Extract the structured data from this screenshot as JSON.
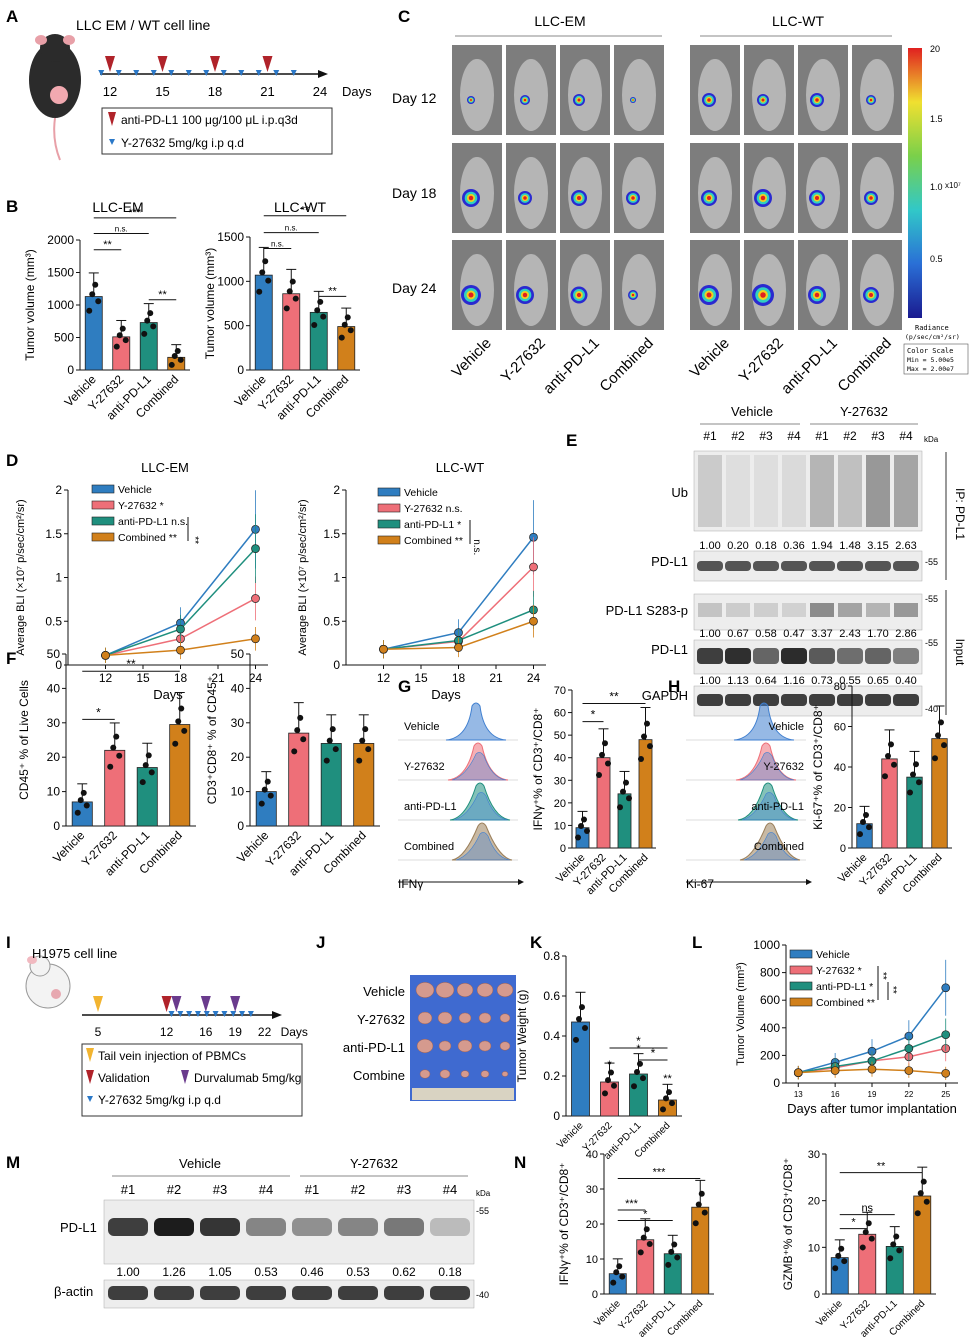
{
  "panel_letters": [
    "A",
    "B",
    "C",
    "D",
    "E",
    "F",
    "G",
    "H",
    "I",
    "J",
    "K",
    "L",
    "M",
    "N"
  ],
  "colors": {
    "vehicle": "#2f7dc0",
    "y27632": "#ee6f78",
    "antipdl1": "#1f8f7e",
    "combined": "#d1801b",
    "triangle_red": "#b0232a",
    "triangle_blue": "#2a78c8",
    "triangle_purple": "#6a3b8d",
    "triangle_yellow": "#f2b430"
  },
  "groups": [
    "Vehicle",
    "Y-27632",
    "anti-PD-L1",
    "Combined"
  ],
  "A": {
    "title": "LLC EM / WT cell line",
    "days": [
      "12",
      "15",
      "18",
      "21",
      "24"
    ],
    "axis_unit": "Days",
    "legend": [
      "anti-PD-L1 100 μg/100 μL i.p.q3d",
      "Y-27632 5mg/kg i.p q.d"
    ]
  },
  "B": {
    "titles": [
      "LLC-EM",
      "LLC-WT"
    ],
    "ylabel": "Tumor volume (mm³)",
    "sig_left": [
      "***",
      "n.s.",
      "**",
      "**"
    ],
    "sig_right": [
      "**",
      "n.s.",
      "n.s.",
      "**"
    ]
  },
  "C": {
    "groups_top": [
      "LLC-EM",
      "LLC-WT"
    ],
    "rows": [
      "Day 12",
      "Day 18",
      "Day 24"
    ],
    "colorbar_max": "20",
    "colorbar_ticks": [
      "1.5",
      "1.0",
      "0.5"
    ],
    "colorbar_exp": "x10⁷",
    "radiance_title": "Radiance",
    "radiance_unit": "(p/sec/cm²/sr)",
    "color_scale": [
      "Color Scale",
      "Min = 5.00e5",
      "Max = 2.00e7"
    ]
  },
  "D": {
    "titles": [
      "LLC-EM",
      "LLC-WT"
    ],
    "ylabel": "Average BLI (×10⁷ p/sec/cm²/sr)",
    "xlabel": "Days",
    "legend_left": [
      "Vehicle",
      "Y-27632 *",
      "anti-PD-L1 n.s.",
      "Combined **"
    ],
    "legend_right": [
      "Vehicle",
      "Y-27632 n.s.",
      "anti-PD-L1 *",
      "Combined **"
    ],
    "bracket_left": "**",
    "bracket_right": "n.s."
  },
  "E": {
    "groups": [
      "Vehicle",
      "Y-27632"
    ],
    "lanes": [
      "#1",
      "#2",
      "#3",
      "#4",
      "#1",
      "#2",
      "#3",
      "#4"
    ],
    "kda": "kDa",
    "rows": [
      "Ub",
      "PD-L1",
      "PD-L1 S283-p",
      "PD-L1",
      "GAPDH"
    ],
    "ub_quant": [
      "1.00",
      "0.20",
      "0.18",
      "0.36",
      "1.94",
      "1.48",
      "3.15",
      "2.63"
    ],
    "s283_quant": [
      "1.00",
      "0.67",
      "0.58",
      "0.47",
      "3.37",
      "2.43",
      "1.70",
      "2.86"
    ],
    "pdl1_quant": [
      "1.00",
      "1.13",
      "0.64",
      "1.16",
      "0.73",
      "0.55",
      "0.65",
      "0.40"
    ],
    "markers": [
      "55",
      "55",
      "55",
      "40"
    ],
    "side_ip": "IP: PD-L1",
    "side_input": "Input"
  },
  "F": {
    "ylabel_left": "CD45⁺ % of Live Cells",
    "ylabel_right": "CD3⁺CD8⁺ % of CD45⁺",
    "sig_left": [
      "**",
      "*"
    ]
  },
  "G": {
    "flow_labels": [
      "Vehicle",
      "Y-27632",
      "anti-PD-L1",
      "Combined"
    ],
    "xaxis": "IFNγ",
    "ylabel": "IFNγ⁺% of CD3⁺/CD8⁺",
    "sig": [
      "**",
      "*"
    ]
  },
  "H": {
    "flow_labels": [
      "Vehicle",
      "Y-27632",
      "anti-PD-L1",
      "Combined"
    ],
    "xaxis": "Ki-67",
    "ylabel": "Ki-67⁺% of CD3⁺/CD8⁺"
  },
  "I": {
    "title": "H1975 cell line",
    "days": [
      "5",
      "12",
      "16",
      "19",
      "22"
    ],
    "axis_unit": "Days",
    "legend": [
      "Tail vein injection of PBMCs",
      "Validation",
      "Durvalumab 5mg/kg",
      "Y-27632 5mg/kg i.p q.d"
    ]
  },
  "J": {
    "rows": [
      "Vehicle",
      "Y-27632",
      "anti-PD-L1",
      "Combine"
    ]
  },
  "K": {
    "ylabel": "Tumor  Weight (g)",
    "sig": [
      "*",
      "*",
      "*",
      "*",
      "**"
    ]
  },
  "L": {
    "ylabel": "Tumor Volume (mm³)",
    "xlabel": "Days after tumor implantation",
    "legend": [
      "Vehicle",
      "Y-27632 *",
      "anti-PD-L1 *",
      "Combined **"
    ],
    "brackets": [
      "**",
      "**"
    ]
  },
  "M": {
    "groups": [
      "Vehicle",
      "Y-27632"
    ],
    "lanes": [
      "#1",
      "#2",
      "#3",
      "#4",
      "#1",
      "#2",
      "#3",
      "#4"
    ],
    "kda": "kDa",
    "rows": [
      "PD-L1",
      "β-actin"
    ],
    "quant": [
      "1.00",
      "1.26",
      "1.05",
      "0.53",
      "0.46",
      "0.53",
      "0.62",
      "0.18"
    ],
    "markers": [
      "55",
      "40"
    ]
  },
  "N": {
    "ylabel_left": "IFNγ⁺% of CD3⁺/CD8⁺",
    "ylabel_right": "GZMB⁺% of CD3⁺/CD8⁺",
    "sig_left": [
      "***",
      "***",
      "*"
    ],
    "sig_right": [
      "**",
      "ns",
      "*"
    ]
  },
  "chart_data": [
    {
      "id": "B-left",
      "type": "bar",
      "title": "LLC-EM",
      "categories": [
        "Vehicle",
        "Y-27632",
        "anti-PD-L1",
        "Combined"
      ],
      "values": [
        1130,
        510,
        730,
        195
      ],
      "ylim": [
        0,
        2000
      ],
      "yticks": [
        0,
        500,
        1000,
        1500,
        2000
      ],
      "ylabel": "Tumor volume (mm³)"
    },
    {
      "id": "B-right",
      "type": "bar",
      "title": "LLC-WT",
      "categories": [
        "Vehicle",
        "Y-27632",
        "anti-PD-L1",
        "Combined"
      ],
      "values": [
        1070,
        860,
        650,
        490
      ],
      "ylim": [
        0,
        1500
      ],
      "yticks": [
        0,
        500,
        1000,
        1500
      ],
      "ylabel": "Tumor volume (mm³)"
    },
    {
      "id": "D-left",
      "type": "line",
      "title": "LLC-EM",
      "x": [
        12,
        18,
        24
      ],
      "xlim": [
        9,
        25
      ],
      "xticks": [
        12,
        15,
        18,
        21,
        24
      ],
      "ylim": [
        0,
        2
      ],
      "yticks": [
        0,
        0.5,
        1.0,
        1.5,
        2.0
      ],
      "series": [
        {
          "name": "Vehicle",
          "values": [
            0.11,
            0.48,
            1.55
          ]
        },
        {
          "name": "Y-27632 *",
          "values": [
            0.11,
            0.3,
            0.76
          ]
        },
        {
          "name": "anti-PD-L1 n.s.",
          "values": [
            0.11,
            0.41,
            1.33
          ]
        },
        {
          "name": "Combined **",
          "values": [
            0.11,
            0.17,
            0.3
          ]
        }
      ]
    },
    {
      "id": "D-right",
      "type": "line",
      "title": "LLC-WT",
      "x": [
        12,
        18,
        24
      ],
      "xlim": [
        9,
        25
      ],
      "xticks": [
        12,
        15,
        18,
        21,
        24
      ],
      "ylim": [
        0,
        2
      ],
      "yticks": [
        0,
        0.5,
        1.0,
        1.5,
        2.0
      ],
      "series": [
        {
          "name": "Vehicle",
          "values": [
            0.18,
            0.37,
            1.46
          ]
        },
        {
          "name": "Y-27632 n.s.",
          "values": [
            0.18,
            0.27,
            1.12
          ]
        },
        {
          "name": "anti-PD-L1 *",
          "values": [
            0.18,
            0.28,
            0.63
          ]
        },
        {
          "name": "Combined **",
          "values": [
            0.18,
            0.2,
            0.5
          ]
        }
      ]
    },
    {
      "id": "F-left",
      "type": "bar",
      "categories": [
        "Vehicle",
        "Y-27632",
        "anti-PD-L1",
        "Combined"
      ],
      "values": [
        7,
        22,
        17,
        29.5
      ],
      "ylim": [
        0,
        50
      ],
      "yticks": [
        0,
        10,
        20,
        30,
        40,
        50
      ],
      "ylabel": "CD45⁺ % of Live Cells"
    },
    {
      "id": "F-right",
      "type": "bar",
      "categories": [
        "Vehicle",
        "Y-27632",
        "anti-PD-L1",
        "Combined"
      ],
      "values": [
        10,
        27,
        24,
        24
      ],
      "ylim": [
        0,
        50
      ],
      "yticks": [
        0,
        10,
        20,
        30,
        40,
        50
      ],
      "ylabel": "CD3⁺CD8⁺ % of CD45⁺"
    },
    {
      "id": "G-bar",
      "type": "bar",
      "categories": [
        "Vehicle",
        "Y-27632",
        "anti-PD-L1",
        "Combined"
      ],
      "values": [
        9,
        40,
        24,
        48
      ],
      "ylim": [
        0,
        70
      ],
      "yticks": [
        0,
        10,
        20,
        30,
        40,
        50,
        60,
        70
      ],
      "ylabel": "IFNγ⁺% of CD3⁺/CD8⁺"
    },
    {
      "id": "H-bar",
      "type": "bar",
      "categories": [
        "Vehicle",
        "Y-27632",
        "anti-PD-L1",
        "Combined"
      ],
      "values": [
        12,
        44,
        35,
        54
      ],
      "ylim": [
        0,
        80
      ],
      "yticks": [
        0,
        20,
        40,
        60,
        80
      ],
      "ylabel": "Ki-67⁺% of CD3⁺/CD8⁺"
    },
    {
      "id": "K",
      "type": "bar",
      "categories": [
        "Vehicle",
        "Y-27632",
        "anti-PD-L1",
        "Combined"
      ],
      "values": [
        0.47,
        0.17,
        0.21,
        0.08
      ],
      "ylim": [
        0,
        0.8
      ],
      "yticks": [
        0,
        0.2,
        0.4,
        0.6,
        0.8
      ],
      "ylabel": "Tumor  Weight (g)"
    },
    {
      "id": "L",
      "type": "line",
      "x": [
        13,
        16,
        19,
        22,
        25
      ],
      "xlim": [
        12,
        26
      ],
      "xticks": [
        13,
        16,
        19,
        22,
        25
      ],
      "ylim": [
        0,
        1000
      ],
      "yticks": [
        0,
        200,
        400,
        600,
        800,
        1000
      ],
      "xlabel": "Days after tumor implantation",
      "ylabel": "Tumor Volume (mm³)",
      "series": [
        {
          "name": "Vehicle",
          "values": [
            75,
            150,
            230,
            340,
            690
          ]
        },
        {
          "name": "Y-27632 *",
          "values": [
            75,
            110,
            160,
            190,
            250
          ]
        },
        {
          "name": "anti-PD-L1 *",
          "values": [
            75,
            120,
            160,
            250,
            350
          ]
        },
        {
          "name": "Combined **",
          "values": [
            75,
            90,
            100,
            90,
            70
          ]
        }
      ]
    },
    {
      "id": "N-left",
      "type": "bar",
      "categories": [
        "Vehicle",
        "Y-27632",
        "anti-PD-L1",
        "Combined"
      ],
      "values": [
        5.8,
        15.5,
        11.5,
        24.8
      ],
      "ylim": [
        0,
        40
      ],
      "yticks": [
        0,
        10,
        20,
        30,
        40
      ],
      "ylabel": "IFNγ⁺% of CD3⁺/CD8⁺"
    },
    {
      "id": "N-right",
      "type": "bar",
      "categories": [
        "Vehicle",
        "Y-27632",
        "anti-PD-L1",
        "Combined"
      ],
      "values": [
        7.8,
        12.8,
        10.2,
        21
      ],
      "ylim": [
        0,
        30
      ],
      "yticks": [
        0,
        10,
        20,
        30
      ],
      "ylabel": "GZMB⁺% of CD3⁺/CD8⁺"
    }
  ]
}
